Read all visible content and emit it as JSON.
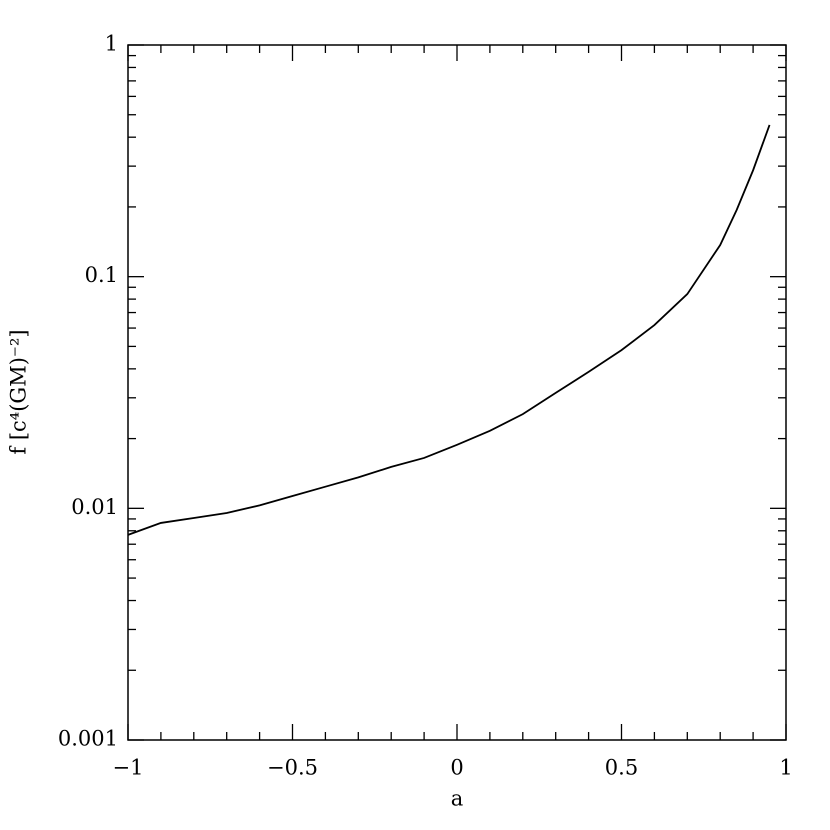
{
  "chart_data": {
    "type": "line",
    "x_label": "a",
    "y_label": "f [c⁴(GM)⁻²]",
    "x": [
      -1,
      -0.9,
      -0.8,
      -0.7,
      -0.6,
      -0.5,
      -0.4,
      -0.3,
      -0.2,
      -0.1,
      0,
      0.1,
      0.2,
      0.3,
      0.4,
      0.5,
      0.6,
      0.7,
      0.8,
      0.85,
      0.9,
      0.95
    ],
    "series": [
      {
        "name": "f",
        "color": "#000000",
        "values": [
          0.00768,
          0.00865,
          0.00908,
          0.00955,
          0.0103,
          0.0113,
          0.0124,
          0.0136,
          0.0151,
          0.0165,
          0.0188,
          0.0216,
          0.0255,
          0.0315,
          0.0388,
          0.0482,
          0.0618,
          0.0841,
          0.137,
          0.194,
          0.288,
          0.452
        ]
      }
    ],
    "xlim": [
      -1,
      1
    ],
    "xticks": [
      {
        "value": -1,
        "label": "−1"
      },
      {
        "value": -0.5,
        "label": "−0.5"
      },
      0,
      0.5,
      1
    ],
    "xminorticks": [
      -0.9,
      -0.8,
      -0.7,
      -0.6,
      -0.4,
      -0.3,
      -0.2,
      -0.1,
      0.1,
      0.2,
      0.3,
      0.4,
      0.6,
      0.7,
      0.8,
      0.9
    ],
    "ylim": [
      0.001,
      1
    ],
    "ylog": true,
    "yticks": [
      0.001,
      0.01,
      0.1,
      1
    ],
    "yminorticks": [
      0.002,
      0.003,
      0.004,
      0.005,
      0.006,
      0.007,
      0.008,
      0.009,
      0.02,
      0.03,
      0.04,
      0.05,
      0.06,
      0.07,
      0.08,
      0.09,
      0.2,
      0.3,
      0.4,
      0.5,
      0.6,
      0.7,
      0.8,
      0.9
    ],
    "grid": false
  }
}
